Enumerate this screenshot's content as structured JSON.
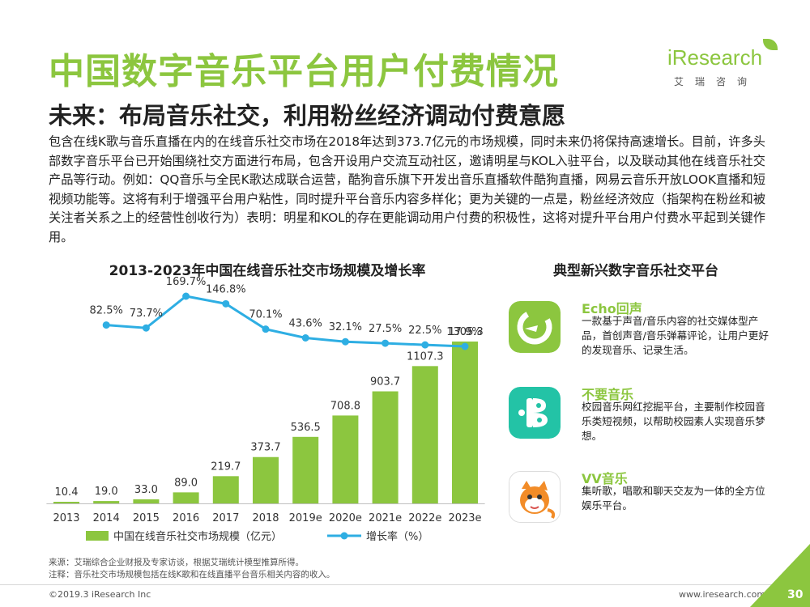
{
  "header": {
    "title": "中国数字音乐平台用户付费情况",
    "subtitle": "未来：布局音乐社交，利用粉丝经济调动付费意愿",
    "logo_brand": "iResearch",
    "logo_cn": "艾瑞咨询"
  },
  "intro": "包含在线K歌与音乐直播在内的在线音乐社交市场在2018年达到373.7亿元的市场规模，同时未来仍将保持高速增长。目前，许多头部数字音乐平台已开始围绕社交方面进行布局，包含开设用户交流互动社区，邀请明星与KOL入驻平台，以及联动其他在线音乐社交产品等行动。例如：QQ音乐与全民K歌达成联合运营，酷狗音乐旗下开发出音乐直播软件酷狗直播，网易云音乐开放LOOK直播和短视频功能等。这将有利于增强平台用户粘性，同时提升平台音乐内容多样化；更为关键的一点是，粉丝经济效应（指架构在粉丝和被关注者关系之上的经营性创收行为）表明：明星和KOL的存在更能调动用户付费的积极性，这将对提升平台用户付费水平起到关键作用。",
  "chart_data": {
    "type": "bar",
    "title": "2013-2023年中国在线音乐社交市场规模及增长率",
    "categories": [
      "2013",
      "2014",
      "2015",
      "2016",
      "2017",
      "2018",
      "2019e",
      "2020e",
      "2021e",
      "2022e",
      "2023e"
    ],
    "series": [
      {
        "name": "中国在线音乐社交市场规模（亿元）",
        "type": "bar",
        "color": "#8cc63f",
        "values": [
          10.4,
          19.0,
          33.0,
          89.0,
          219.7,
          373.7,
          536.5,
          708.8,
          903.7,
          1107.3,
          1305.3
        ],
        "labels": [
          "10.4",
          "19.0",
          "33.0",
          "89.0",
          "219.7",
          "373.7",
          "536.5",
          "708.8",
          "903.7",
          "1107.3",
          "1305.3"
        ]
      },
      {
        "name": "增长率（%）",
        "type": "line",
        "color": "#2eaee3",
        "x": [
          "2014",
          "2015",
          "2016",
          "2017",
          "2018",
          "2019e",
          "2020e",
          "2021e",
          "2022e",
          "2023e"
        ],
        "values": [
          82.5,
          73.7,
          169.7,
          146.8,
          70.1,
          43.6,
          32.1,
          27.5,
          22.5,
          17.9
        ],
        "labels": [
          "82.5%",
          "73.7%",
          "169.7%",
          "146.8%",
          "70.1%",
          "43.6%",
          "32.1%",
          "27.5%",
          "22.5%",
          "17.9%"
        ]
      }
    ],
    "legend_position": "bottom",
    "grid": false
  },
  "source": {
    "line1": "来源：艾瑞综合企业财报及专家访谈，根据艾瑞统计模型推算所得。",
    "line2": "注释：音乐社交市场规模包括在线K歌和在线直播平台音乐相关内容的收入。"
  },
  "platforms": {
    "title": "典型新兴数字音乐社交平台",
    "items": [
      {
        "name": "Echo回声",
        "icon": "echo-app-icon",
        "description": "一款基于声音/音乐内容的社交媒体型产品，首创声音/音乐弹幕评论，让用户更好的发现音乐、记录生活。"
      },
      {
        "name": "不要音乐",
        "icon": "buyao-app-icon",
        "description": "校园音乐网红挖掘平台，主要制作校园音乐类短视频，以帮助校园素人实现音乐梦想。"
      },
      {
        "name": "VV音乐",
        "icon": "vv-app-icon",
        "description": "集听歌，唱歌和聊天交友为一体的全方位娱乐平台。"
      }
    ]
  },
  "footer": {
    "copyright": "©2019.3 iResearch Inc",
    "website": "www.iresearch.com.cn",
    "page_number": "30"
  },
  "colors": {
    "accent": "#8cc63f",
    "line": "#2eaee3",
    "echo": "#8cc63f",
    "buyao": "#23c3a6",
    "vv": "#f28c28"
  }
}
